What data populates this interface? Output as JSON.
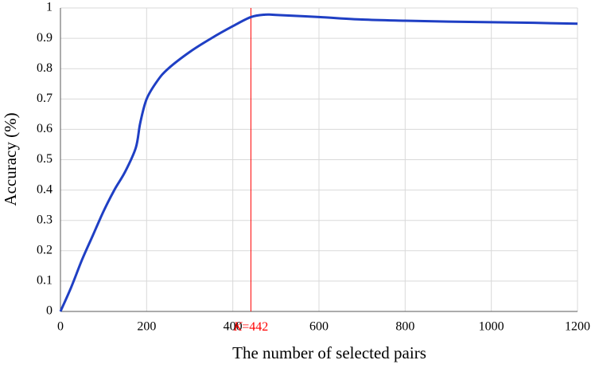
{
  "chart_data": {
    "type": "line",
    "x_label": "The number of selected pairs",
    "y_label": "Accuracy (%)",
    "x": [
      0,
      25,
      50,
      75,
      100,
      125,
      150,
      175,
      185,
      200,
      225,
      250,
      300,
      350,
      400,
      442,
      475,
      500,
      600,
      700,
      800,
      900,
      1000,
      1100,
      1200
    ],
    "series": [
      {
        "name": "Accuracy",
        "color": "#1f3fc4",
        "values": [
          0,
          0.08,
          0.17,
          0.25,
          0.33,
          0.4,
          0.46,
          0.54,
          0.62,
          0.7,
          0.76,
          0.8,
          0.855,
          0.9,
          0.94,
          0.97,
          0.978,
          0.977,
          0.97,
          0.962,
          0.958,
          0.955,
          0.953,
          0.951,
          0.948
        ]
      }
    ],
    "xlim": [
      0,
      1200
    ],
    "xticks": [
      0,
      200,
      400,
      600,
      800,
      1000,
      1200
    ],
    "ylim": [
      0,
      1
    ],
    "yticks": [
      0,
      0.1,
      0.2,
      0.3,
      0.4,
      0.5,
      0.6,
      0.7,
      0.8,
      0.9,
      1
    ],
    "grid": true,
    "vline": {
      "x": 442,
      "color": "#ff0000",
      "label_parts": [
        "K",
        "=442"
      ]
    }
  }
}
